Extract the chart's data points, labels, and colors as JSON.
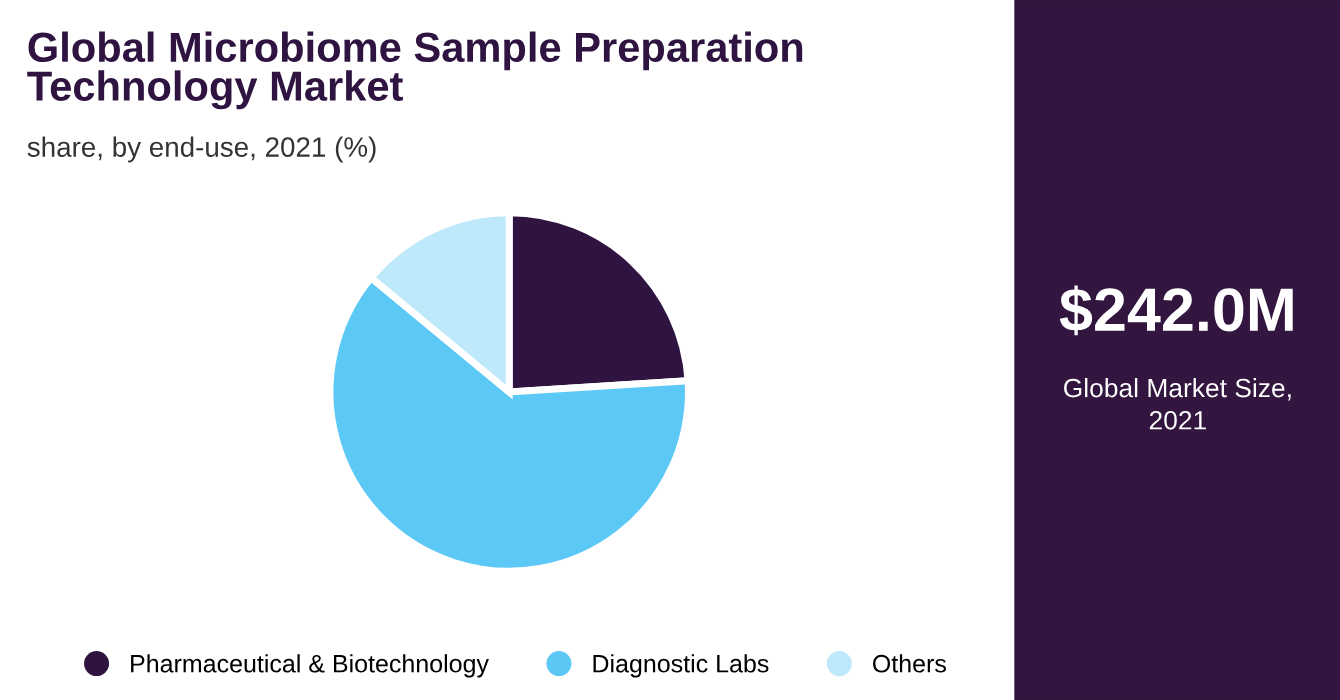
{
  "chart_data": [
    {
      "type": "pie",
      "title": "Global Microbiome Sample Preparation Technology Market",
      "subtitle": "share, by end-use, 2021 (%)",
      "categories": [
        "Pharmaceutical & Biotechnology",
        "Diagnostic Labs",
        "Others"
      ],
      "values": [
        24,
        62,
        14
      ],
      "colors": [
        "#2f1441",
        "#5bc8f5",
        "#bde9fb"
      ],
      "legend": "bottom"
    },
    {
      "type": "other",
      "title": "$242.0M",
      "annotations": [
        "Global Market Size,\n2021"
      ]
    }
  ]
}
